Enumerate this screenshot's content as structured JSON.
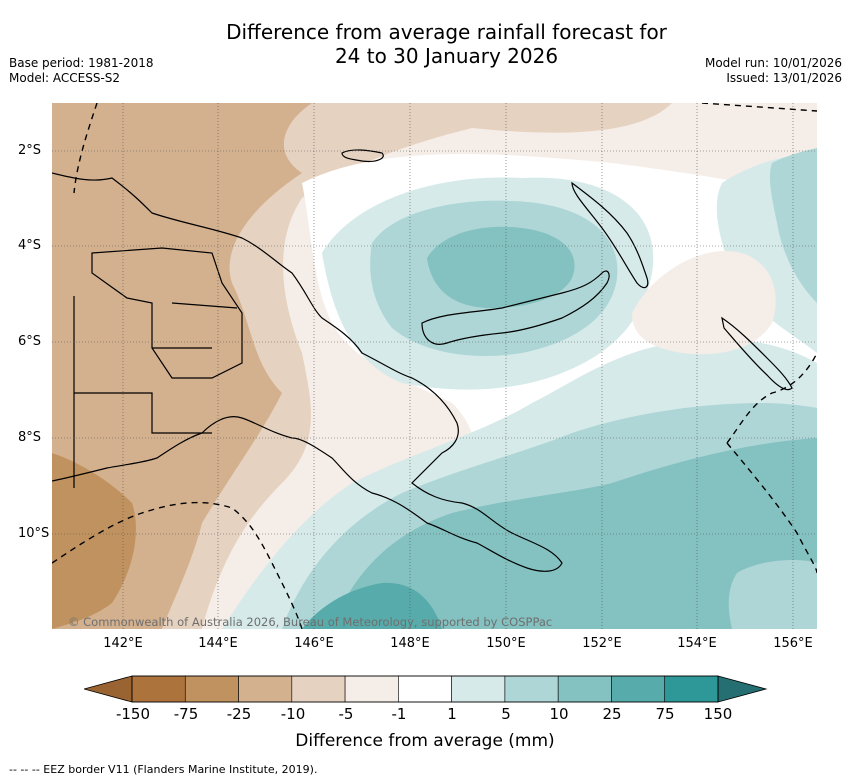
{
  "title": {
    "line1": "Difference from average rainfall forecast for",
    "line2": "24 to 30 January 2026"
  },
  "meta": {
    "base_period": "Base period: 1981-2018",
    "model": "Model: ACCESS-S2",
    "model_run": "Model run: 10/01/2026",
    "issued": "Issued: 13/01/2026"
  },
  "map": {
    "copyright": "© Commonwealth of Australia 2026, Bureau of Meteorology, supported by COSPPac",
    "lat_ticks": [
      "2°S",
      "4°S",
      "6°S",
      "8°S",
      "10°S"
    ],
    "lon_ticks": [
      "142°E",
      "144°E",
      "146°E",
      "148°E",
      "150°E",
      "152°E",
      "154°E",
      "156°E"
    ]
  },
  "colorbar": {
    "labels": [
      "-150",
      "-75",
      "-25",
      "-10",
      "-5",
      "-1",
      "1",
      "5",
      "10",
      "25",
      "75",
      "150"
    ],
    "colors": [
      "#ad733c",
      "#c0925f",
      "#d3b08e",
      "#e6d2c0",
      "#f5ede7",
      "#ffffff",
      "#d6eaea",
      "#aed6d6",
      "#84c1c1",
      "#57abab",
      "#2e9898"
    ],
    "min_color": "#9a6432",
    "max_color": "#256f72",
    "title": "Difference from average (mm)"
  },
  "footer": "--  --  -- EEZ border V11 (Flanders Marine Institute, 2019)."
}
